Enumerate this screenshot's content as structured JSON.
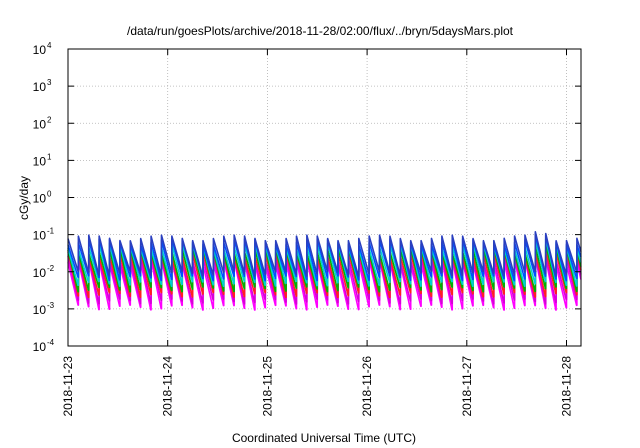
{
  "chart_data": {
    "type": "line",
    "title": "/data/run/goesPlots/archive/2018-11-28/02:00/flux/../bryn/5daysMars.plot",
    "xlabel": "Coordinated Universal Time (UTC)",
    "ylabel": "cGy/day",
    "yscale": "log",
    "ylim": [
      0.0001,
      10000
    ],
    "xlim": [
      "2018-11-23",
      "2018-11-28 03:10"
    ],
    "grid": true,
    "x_ticks": [
      "2018-11-23",
      "2018-11-24",
      "2018-11-25",
      "2018-11-26",
      "2018-11-27",
      "2018-11-28"
    ],
    "y_ticks": [
      {
        "mantissa": "10",
        "exp": "-4",
        "value": 0.0001
      },
      {
        "mantissa": "10",
        "exp": "-3",
        "value": 0.001
      },
      {
        "mantissa": "10",
        "exp": "-2",
        "value": 0.01
      },
      {
        "mantissa": "10",
        "exp": "-1",
        "value": 0.1
      },
      {
        "mantissa": "10",
        "exp": "0",
        "value": 1
      },
      {
        "mantissa": "10",
        "exp": "1",
        "value": 10
      },
      {
        "mantissa": "10",
        "exp": "2",
        "value": 100
      },
      {
        "mantissa": "10",
        "exp": "3",
        "value": 1000
      },
      {
        "mantissa": "10",
        "exp": "4",
        "value": 10000
      }
    ],
    "sawtooth": {
      "cycles_per_day": 9.6,
      "start_phase_days": 0.0
    },
    "series": [
      {
        "color": "#ff00ff",
        "peak": 0.018,
        "trough": 0.0011
      },
      {
        "color": "#d800d8",
        "peak": 0.023,
        "trough": 0.0016
      },
      {
        "color": "#ff2020",
        "peak": 0.03,
        "trough": 0.0024
      },
      {
        "color": "#00b000",
        "peak": 0.038,
        "trough": 0.0034
      },
      {
        "color": "#00d0d0",
        "peak": 0.05,
        "trough": 0.0048
      },
      {
        "color": "#0050ff",
        "peak": 0.065,
        "trough": 0.0068
      },
      {
        "color": "#2a3fbf",
        "peak": 0.082,
        "trough": 0.009
      }
    ]
  }
}
